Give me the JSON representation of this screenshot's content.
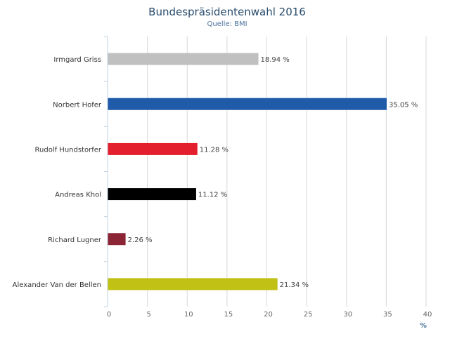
{
  "chart_data": {
    "type": "bar",
    "orientation": "horizontal",
    "title": "Bundespräsidentenwahl 2016",
    "subtitle": "Quelle: BMI",
    "categories": [
      "Irmgard Griss",
      "Norbert Hofer",
      "Rudolf Hundstorfer",
      "Andreas Khol",
      "Richard Lugner",
      "Alexander Van der Bellen"
    ],
    "values": [
      18.94,
      35.05,
      11.28,
      11.12,
      2.26,
      21.34
    ],
    "data_labels": [
      "18.94 %",
      "35.05 %",
      "11.28 %",
      "11.12 %",
      "2.26 %",
      "21.34 %"
    ],
    "colors": [
      "#c0c0c0",
      "#1f5ba8",
      "#e41f2d",
      "#000000",
      "#8b2535",
      "#c0c015"
    ],
    "xlabel": "%",
    "xlim": [
      0,
      40
    ],
    "xticks": [
      "0",
      "5",
      "10",
      "15",
      "20",
      "25",
      "30",
      "35",
      "40"
    ],
    "grid": true,
    "legend": "none"
  }
}
